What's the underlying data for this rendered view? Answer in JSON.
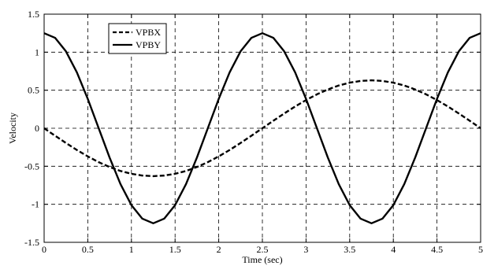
{
  "chart_data": {
    "type": "line",
    "title": "",
    "xlabel": "Time (sec)",
    "ylabel": "Velocity",
    "xlim": [
      0,
      5
    ],
    "ylim": [
      -1.5,
      1.5
    ],
    "xticks": [
      0,
      0.5,
      1,
      1.5,
      2,
      2.5,
      3,
      3.5,
      4,
      4.5,
      5
    ],
    "yticks": [
      -1.5,
      -1,
      -0.5,
      0,
      0.5,
      1,
      1.5
    ],
    "xtick_labels": [
      "0",
      "0.5",
      "1",
      "1.5",
      "2",
      "2.5",
      "3",
      "3.5",
      "4",
      "4.5",
      "5"
    ],
    "ytick_labels": [
      "-1.5",
      "-1",
      "-0.5",
      "0",
      "0.5",
      "1",
      "1.5"
    ],
    "grid": true,
    "legend_position": "top-left",
    "x": [
      0,
      0.125,
      0.25,
      0.375,
      0.5,
      0.625,
      0.75,
      0.875,
      1,
      1.125,
      1.25,
      1.375,
      1.5,
      1.625,
      1.75,
      1.875,
      2,
      2.125,
      2.25,
      2.375,
      2.5,
      2.625,
      2.75,
      2.875,
      3,
      3.125,
      3.25,
      3.375,
      3.5,
      3.625,
      3.75,
      3.875,
      4,
      4.125,
      4.25,
      4.375,
      4.5,
      4.625,
      4.75,
      4.875,
      5
    ],
    "series": [
      {
        "name": "VPBX",
        "style": "dashed",
        "color": "#000000",
        "values": [
          0,
          -0.098,
          -0.194,
          -0.286,
          -0.37,
          -0.446,
          -0.51,
          -0.562,
          -0.599,
          -0.622,
          -0.63,
          -0.622,
          -0.599,
          -0.562,
          -0.51,
          -0.446,
          -0.37,
          -0.286,
          -0.194,
          -0.098,
          0,
          0.098,
          0.194,
          0.286,
          0.37,
          0.446,
          0.51,
          0.562,
          0.599,
          0.622,
          0.63,
          0.622,
          0.599,
          0.562,
          0.51,
          0.446,
          0.37,
          0.286,
          0.194,
          0.098,
          0
        ]
      },
      {
        "name": "VPBY",
        "style": "solid",
        "color": "#000000",
        "values": [
          1.25,
          1.189,
          1.011,
          0.735,
          0.386,
          0,
          -0.386,
          -0.735,
          -1.011,
          -1.189,
          -1.25,
          -1.189,
          -1.011,
          -0.735,
          -0.386,
          0,
          0.386,
          0.735,
          1.011,
          1.189,
          1.25,
          1.189,
          1.011,
          0.735,
          0.386,
          0,
          -0.386,
          -0.735,
          -1.011,
          -1.189,
          -1.25,
          -1.189,
          -1.011,
          -0.735,
          -0.386,
          0,
          0.386,
          0.735,
          1.011,
          1.189,
          1.25
        ]
      }
    ]
  }
}
